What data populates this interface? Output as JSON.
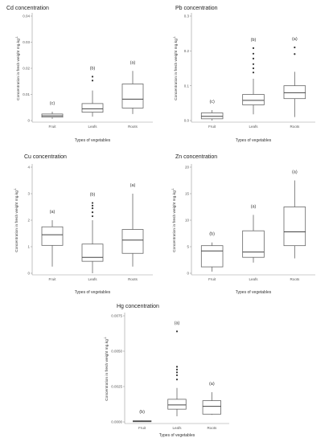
{
  "chart_data": [
    {
      "type": "boxplot",
      "title": "Cd concentration",
      "xlabel": "Types of vegetables",
      "ylabel": "Concentration in fresh weight mg.kg",
      "ylabel_sup": "-1",
      "categories": [
        "Fruit",
        "Leafs",
        "Roots"
      ],
      "ylim": [
        0,
        0.04
      ],
      "yticks": [
        "0",
        "0.01",
        "0.02",
        "0.03",
        "0.04"
      ],
      "ytick_values": [
        0,
        0.01,
        0.02,
        0.03,
        0.04
      ],
      "group_labels": [
        "(c)",
        "(b)",
        "(a)"
      ],
      "boxes": [
        {
          "min": 0.0007,
          "q1": 0.0013,
          "median": 0.0018,
          "q3": 0.0025,
          "max": 0.0034,
          "outliers": []
        },
        {
          "min": 0.0015,
          "q1": 0.0032,
          "median": 0.0045,
          "q3": 0.0065,
          "max": 0.0115,
          "outliers": [
            0.0153,
            0.0168
          ]
        },
        {
          "min": 0.0025,
          "q1": 0.0048,
          "median": 0.0082,
          "q3": 0.014,
          "max": 0.019,
          "outliers": []
        }
      ]
    },
    {
      "type": "boxplot",
      "title": "Pb concentration",
      "xlabel": "Types of vegetables",
      "ylabel": "Concentration in fresh weight mg.kg",
      "ylabel_sup": "-1",
      "categories": [
        "Fruit",
        "Leafs",
        "Roots"
      ],
      "ylim": [
        0,
        0.3
      ],
      "yticks": [
        "0.0",
        "0.1",
        "0.2",
        "0.3"
      ],
      "ytick_values": [
        0,
        0.1,
        0.2,
        0.3
      ],
      "group_labels": [
        "(c)",
        "(b)",
        "(a)"
      ],
      "boxes": [
        {
          "min": 0.0,
          "q1": 0.005,
          "median": 0.012,
          "q3": 0.022,
          "max": 0.03,
          "outliers": []
        },
        {
          "min": 0.018,
          "q1": 0.045,
          "median": 0.058,
          "q3": 0.075,
          "max": 0.12,
          "outliers": [
            0.138,
            0.15,
            0.162,
            0.178,
            0.192,
            0.208
          ]
        },
        {
          "min": 0.01,
          "q1": 0.063,
          "median": 0.08,
          "q3": 0.1,
          "max": 0.14,
          "outliers": [
            0.191,
            0.21
          ]
        }
      ]
    },
    {
      "type": "boxplot",
      "title": "Cu concentration",
      "xlabel": "Types of vegetables",
      "ylabel": "Concentration in fresh weight mg.kg",
      "ylabel_sup": "-1",
      "categories": [
        "Fruit",
        "Leafs",
        "Roots"
      ],
      "ylim": [
        0,
        4
      ],
      "yticks": [
        "0",
        "1",
        "2",
        "3",
        "4"
      ],
      "ytick_values": [
        0,
        1,
        2,
        3,
        4
      ],
      "group_labels": [
        "(a)",
        "(b)",
        "(a)"
      ],
      "boxes": [
        {
          "min": 0.25,
          "q1": 1.05,
          "median": 1.45,
          "q3": 1.75,
          "max": 2.0,
          "outliers": []
        },
        {
          "min": 0.0,
          "q1": 0.45,
          "median": 0.6,
          "q3": 1.1,
          "max": 2.0,
          "outliers": [
            2.15,
            2.3,
            2.45,
            2.55,
            2.65
          ]
        },
        {
          "min": 0.25,
          "q1": 0.75,
          "median": 1.25,
          "q3": 1.65,
          "max": 3.0,
          "outliers": []
        }
      ]
    },
    {
      "type": "boxplot",
      "title": "Zn concentration",
      "xlabel": "Types of vegetables",
      "ylabel": "Concentration in fresh weight mg.kg",
      "ylabel_sup": "-1",
      "categories": [
        "Fruit",
        "Leafs",
        "Roots"
      ],
      "ylim": [
        0,
        20
      ],
      "yticks": [
        "0",
        "5",
        "10",
        "15",
        "20"
      ],
      "ytick_values": [
        0,
        5,
        10,
        15,
        20
      ],
      "group_labels": [
        "(b)",
        "(a)",
        "(a)"
      ],
      "boxes": [
        {
          "min": 0.3,
          "q1": 1.2,
          "median": 4.2,
          "q3": 5.2,
          "max": 5.8,
          "outliers": []
        },
        {
          "min": 2.0,
          "q1": 3.0,
          "median": 4.0,
          "q3": 8.0,
          "max": 11.0,
          "outliers": []
        },
        {
          "min": 2.8,
          "q1": 5.2,
          "median": 7.8,
          "q3": 12.5,
          "max": 17.5,
          "outliers": []
        }
      ]
    },
    {
      "type": "boxplot",
      "title": "Hg concentration",
      "xlabel": "Types of vegetables",
      "ylabel": "Concentration in fresh weight mg.kg",
      "ylabel_sup": "-1",
      "categories": [
        "Fruit",
        "Leafs",
        "Roots"
      ],
      "ylim": [
        0,
        0.0075
      ],
      "yticks": [
        "0.0000",
        "0.0025",
        "0.0050",
        "0.0075"
      ],
      "ytick_values": [
        0,
        0.0025,
        0.005,
        0.0075
      ],
      "group_labels": [
        "(b)",
        "(a)",
        "(a)"
      ],
      "boxes": [
        {
          "min": 0.0,
          "q1": 2e-05,
          "median": 5e-05,
          "q3": 8e-05,
          "max": 0.0001,
          "outliers": []
        },
        {
          "min": 0.0004,
          "q1": 0.0009,
          "median": 0.0012,
          "q3": 0.0016,
          "max": 0.0024,
          "outliers": [
            0.003,
            0.0033,
            0.0035,
            0.0037,
            0.0039,
            0.0064
          ]
        },
        {
          "min": 0.0005,
          "q1": 0.00055,
          "median": 0.0011,
          "q3": 0.0015,
          "max": 0.0021,
          "outliers": []
        }
      ]
    }
  ]
}
